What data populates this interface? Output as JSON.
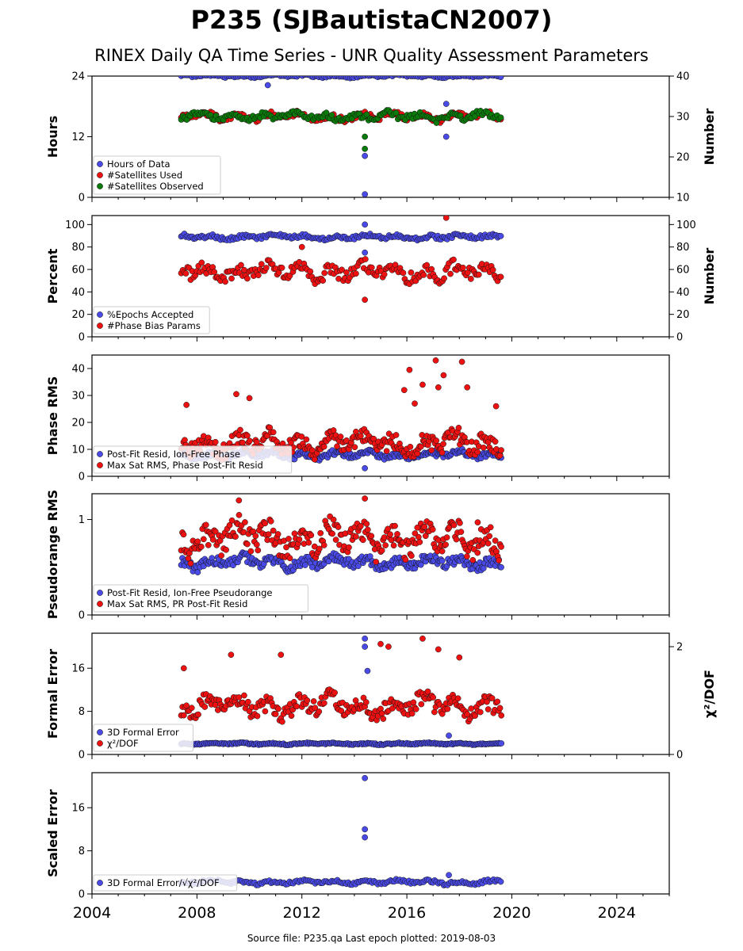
{
  "header": {
    "title": "P235 (SJBautistaCN2007)",
    "subtitle": "RINEX Daily QA Time Series - UNR Quality Assessment Parameters"
  },
  "footer": {
    "text": "Source file: P235.qa Last epoch plotted: 2019-08-03"
  },
  "colors": {
    "blue": "#4a4ae6",
    "red": "#ee1111",
    "green": "#0a7a0a"
  },
  "chart_data": [
    {
      "type": "scatter",
      "ylabel": "Hours",
      "y2label": "Number",
      "xlim": [
        2004,
        2026
      ],
      "ylim": [
        0,
        24
      ],
      "y2lim": [
        10,
        40
      ],
      "yticks": [
        "0",
        "12",
        "24"
      ],
      "y2ticks": [
        "10",
        "20",
        "30",
        "40"
      ],
      "legend": [
        "Hours of Data",
        "#Satellites Used",
        "#Satellites Observed"
      ],
      "legend_placement": "lower-left",
      "series": [
        {
          "name": "Hours of Data",
          "color": "#4a4ae6",
          "axis": "left",
          "x": [
            2007.4,
            2019.6
          ],
          "typical": 24,
          "outliers": [
            [
              2010.7,
              22.2
            ],
            [
              2014.4,
              8.2
            ],
            [
              2014.4,
              0.6
            ],
            [
              2017.5,
              18.5
            ],
            [
              2017.5,
              12
            ]
          ]
        },
        {
          "name": "#Satellites Used",
          "color": "#ee1111",
          "axis": "right",
          "x": [
            2007.4,
            2019.6
          ],
          "typical": 30,
          "outliers": []
        },
        {
          "name": "#Satellites Observed",
          "color": "#0a7a0a",
          "axis": "right",
          "x": [
            2007.4,
            2019.6
          ],
          "typical": 30,
          "outliers": [
            [
              2014.4,
              22
            ],
            [
              2014.4,
              25
            ]
          ]
        }
      ]
    },
    {
      "type": "scatter",
      "ylabel": "Percent",
      "y2label": "Number",
      "xlim": [
        2004,
        2026
      ],
      "ylim": [
        0,
        108
      ],
      "y2lim": [
        0,
        108
      ],
      "yticks": [
        "0",
        "20",
        "40",
        "60",
        "80",
        "100"
      ],
      "y2ticks": [
        "0",
        "20",
        "40",
        "60",
        "80",
        "100"
      ],
      "legend": [
        "%Epochs Accepted",
        "#Phase Bias Params"
      ],
      "legend_placement": "lower-left",
      "series": [
        {
          "name": "%Epochs Accepted",
          "color": "#4a4ae6",
          "axis": "left",
          "x": [
            2007.4,
            2019.6
          ],
          "typical": 89,
          "outliers": [
            [
              2014.4,
              100
            ],
            [
              2014.4,
              75
            ]
          ]
        },
        {
          "name": "#Phase Bias Params",
          "color": "#ee1111",
          "axis": "right",
          "x": [
            2007.4,
            2019.6
          ],
          "typical": 58,
          "outliers": [
            [
              2014.4,
              33
            ],
            [
              2017.5,
              106
            ],
            [
              2012.0,
              80
            ]
          ]
        }
      ]
    },
    {
      "type": "scatter",
      "ylabel": "Phase RMS",
      "xlim": [
        2004,
        2026
      ],
      "ylim": [
        0,
        45
      ],
      "yticks": [
        "0",
        "10",
        "20",
        "30",
        "40"
      ],
      "legend": [
        "Post-Fit Resid, Ion-Free Phase",
        "Max Sat RMS, Phase Post-Fit Resid"
      ],
      "legend_placement": "lower-left",
      "series": [
        {
          "name": "Post-Fit Resid, Ion-Free Phase",
          "color": "#4a4ae6",
          "axis": "left",
          "x": [
            2007.4,
            2019.6
          ],
          "typical": 8,
          "outliers": [
            [
              2014.4,
              3
            ]
          ]
        },
        {
          "name": "Max Sat RMS, Phase Post-Fit Resid",
          "color": "#ee1111",
          "axis": "left",
          "x": [
            2007.4,
            2019.6
          ],
          "typical": 12,
          "outliers": [
            [
              2017.1,
              43
            ],
            [
              2018.1,
              42.5
            ],
            [
              2016.1,
              39.5
            ],
            [
              2017.4,
              37.5
            ],
            [
              2016.6,
              34
            ],
            [
              2017.2,
              33
            ],
            [
              2018.3,
              33
            ],
            [
              2009.5,
              30.5
            ],
            [
              2015.9,
              32
            ],
            [
              2010.0,
              29
            ],
            [
              2016.3,
              27
            ],
            [
              2007.6,
              26.5
            ],
            [
              2019.4,
              26
            ]
          ]
        }
      ]
    },
    {
      "type": "scatter",
      "ylabel": "Pseudorange RMS",
      "xlim": [
        2004,
        2026
      ],
      "ylim": [
        0,
        1.27
      ],
      "yticks": [
        "0",
        "1"
      ],
      "legend": [
        "Post-Fit Resid, Ion-Free Pseudorange",
        "Max Sat RMS, PR Post-Fit Resid"
      ],
      "legend_placement": "lower-left",
      "series": [
        {
          "name": "Post-Fit Resid, Ion-Free Pseudorange",
          "color": "#4a4ae6",
          "axis": "left",
          "x": [
            2007.4,
            2019.6
          ],
          "typical": 0.55,
          "outliers": []
        },
        {
          "name": "Max Sat RMS, PR Post-Fit Resid",
          "color": "#ee1111",
          "axis": "left",
          "x": [
            2007.4,
            2019.6
          ],
          "typical": 0.8,
          "outliers": [
            [
              2014.4,
              1.22
            ],
            [
              2009.6,
              1.2
            ],
            [
              2018.7,
              0.97
            ]
          ]
        }
      ]
    },
    {
      "type": "scatter",
      "ylabel": "Formal Error",
      "y2label": "χ²/DOF",
      "xlim": [
        2004,
        2026
      ],
      "ylim": [
        0,
        22.5
      ],
      "y2lim": [
        0,
        2.25
      ],
      "yticks": [
        "0",
        "8",
        "16"
      ],
      "y2ticks": [
        "0",
        "2"
      ],
      "legend": [
        "3D Formal Error",
        "χ²/DOF"
      ],
      "legend_placement": "lower-left",
      "series": [
        {
          "name": "3D Formal Error",
          "color": "#4a4ae6",
          "axis": "left",
          "x": [
            2007.4,
            2019.6
          ],
          "typical": 2,
          "outliers": [
            [
              2014.4,
              21.5
            ],
            [
              2014.4,
              20
            ],
            [
              2014.5,
              15.5
            ],
            [
              2017.6,
              3.5
            ]
          ]
        },
        {
          "name": "χ²/DOF",
          "color": "#ee1111",
          "axis": "right",
          "x": [
            2007.4,
            2019.6
          ],
          "typical": 0.9,
          "outliers": [
            [
              2016.6,
              2.15
            ],
            [
              2015.0,
              2.05
            ],
            [
              2015.3,
              2.0
            ],
            [
              2017.2,
              1.95
            ],
            [
              2009.3,
              1.85
            ],
            [
              2011.2,
              1.85
            ],
            [
              2018.0,
              1.8
            ],
            [
              2007.5,
              1.6
            ]
          ]
        }
      ]
    },
    {
      "type": "scatter",
      "ylabel": "Scaled Error",
      "xlim": [
        2004,
        2026
      ],
      "ylim": [
        0,
        22.5
      ],
      "yticks": [
        "0",
        "8",
        "16"
      ],
      "xticks": [
        "2004",
        "2008",
        "2012",
        "2016",
        "2020",
        "2024"
      ],
      "legend": [
        "3D Formal Error/√χ²/DOF"
      ],
      "legend_placement": "lower-left",
      "series": [
        {
          "name": "3D Formal Error/√χ²/DOF",
          "color": "#4a4ae6",
          "axis": "left",
          "x": [
            2007.4,
            2019.6
          ],
          "typical": 2.2,
          "outliers": [
            [
              2014.4,
              21.5
            ],
            [
              2014.4,
              12
            ],
            [
              2014.4,
              10.5
            ],
            [
              2017.6,
              3.5
            ]
          ]
        }
      ]
    }
  ]
}
